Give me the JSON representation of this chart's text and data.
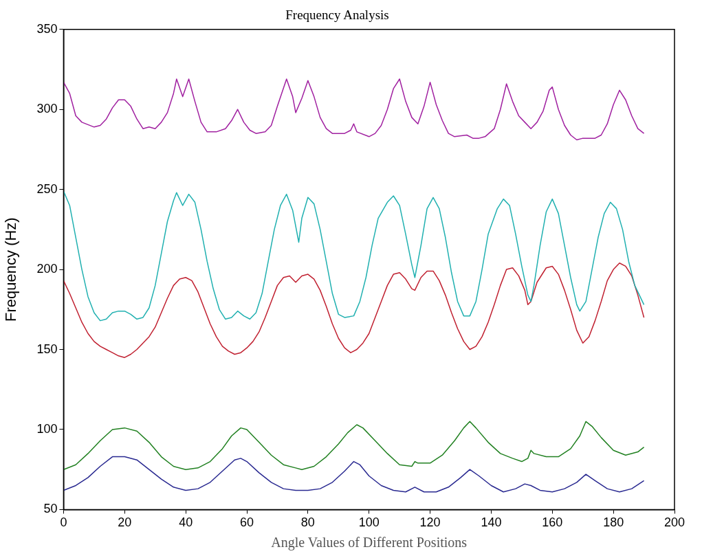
{
  "chart_data": {
    "type": "line",
    "title": "Frequency Analysis",
    "xlabel": "Angle Values of Different Positions",
    "ylabel": "Frequency (Hz)",
    "xlim": [
      0,
      200
    ],
    "xticks": [
      0,
      20,
      40,
      60,
      80,
      100,
      120,
      140,
      160,
      180,
      200
    ],
    "ylim": [
      50,
      350
    ],
    "yticks": [
      50,
      100,
      150,
      200,
      250,
      300,
      350
    ],
    "grid": false,
    "legend": false,
    "marker": "none",
    "line_style": "solid",
    "series": [
      {
        "color": "#a020a0",
        "x": [
          0,
          2,
          4,
          6,
          10,
          12,
          14,
          16,
          18,
          20,
          22,
          24,
          26,
          28,
          30,
          32,
          34,
          36,
          37,
          39,
          41,
          43,
          45,
          47,
          50,
          53,
          55,
          57,
          59,
          61,
          63,
          66,
          68,
          70,
          73,
          75,
          76,
          78,
          80,
          82,
          84,
          86,
          88,
          92,
          94,
          95,
          96,
          100,
          102,
          104,
          106,
          108,
          110,
          112,
          114,
          116,
          118,
          120,
          122,
          124,
          126,
          128,
          132,
          134,
          136,
          138,
          141,
          143,
          145,
          147,
          149,
          151,
          153,
          155,
          157,
          159,
          160,
          162,
          164,
          166,
          168,
          170,
          174,
          176,
          178,
          180,
          182,
          184,
          186,
          188,
          190
        ],
        "values": [
          317,
          310,
          296,
          292,
          289,
          290,
          294,
          301,
          306,
          306,
          302,
          294,
          288,
          289,
          288,
          292,
          298,
          310,
          319,
          308,
          319,
          305,
          292,
          286,
          286,
          288,
          293,
          300,
          292,
          287,
          285,
          286,
          290,
          302,
          319,
          308,
          298,
          307,
          318,
          308,
          295,
          288,
          285,
          285,
          287,
          291,
          286,
          283,
          285,
          290,
          300,
          313,
          319,
          305,
          295,
          291,
          302,
          317,
          303,
          293,
          285,
          283,
          284,
          282,
          282,
          283,
          288,
          300,
          316,
          305,
          296,
          292,
          288,
          292,
          299,
          312,
          314,
          300,
          290,
          284,
          281,
          282,
          282,
          284,
          291,
          303,
          312,
          306,
          296,
          288,
          285
        ]
      },
      {
        "color": "#20b0b0",
        "x": [
          0,
          2,
          4,
          6,
          8,
          10,
          12,
          14,
          16,
          18,
          20,
          22,
          24,
          26,
          28,
          30,
          32,
          34,
          36,
          37,
          39,
          41,
          43,
          45,
          47,
          49,
          51,
          53,
          55,
          57,
          59,
          61,
          63,
          65,
          67,
          69,
          71,
          73,
          75,
          77,
          78,
          80,
          82,
          84,
          86,
          88,
          90,
          92,
          95,
          97,
          99,
          101,
          103,
          106,
          108,
          110,
          112,
          114,
          115,
          117,
          119,
          121,
          123,
          125,
          127,
          129,
          131,
          133,
          135,
          137,
          139,
          142,
          144,
          146,
          148,
          150,
          152,
          153,
          154,
          156,
          158,
          160,
          162,
          164,
          166,
          168,
          169,
          171,
          173,
          175,
          177,
          179,
          181,
          183,
          185,
          187,
          190
        ],
        "values": [
          249,
          240,
          220,
          200,
          183,
          173,
          168,
          169,
          173,
          174,
          174,
          172,
          169,
          170,
          176,
          190,
          210,
          230,
          243,
          248,
          240,
          247,
          242,
          225,
          205,
          188,
          175,
          169,
          170,
          174,
          171,
          169,
          173,
          185,
          205,
          225,
          240,
          247,
          237,
          217,
          232,
          245,
          241,
          225,
          205,
          185,
          172,
          170,
          171,
          180,
          195,
          215,
          232,
          242,
          246,
          240,
          222,
          203,
          195,
          215,
          238,
          245,
          238,
          220,
          198,
          180,
          171,
          171,
          180,
          200,
          222,
          238,
          244,
          240,
          222,
          202,
          184,
          180,
          190,
          215,
          236,
          244,
          235,
          215,
          195,
          178,
          174,
          180,
          200,
          220,
          235,
          242,
          238,
          225,
          205,
          190,
          178
        ]
      },
      {
        "color": "#c02030",
        "x": [
          0,
          2,
          4,
          6,
          8,
          10,
          12,
          14,
          16,
          18,
          20,
          22,
          24,
          26,
          28,
          30,
          32,
          34,
          36,
          38,
          40,
          42,
          44,
          46,
          48,
          50,
          52,
          54,
          56,
          58,
          60,
          62,
          64,
          66,
          68,
          70,
          72,
          74,
          76,
          78,
          80,
          82,
          84,
          86,
          88,
          90,
          92,
          94,
          96,
          98,
          100,
          102,
          104,
          106,
          108,
          110,
          112,
          114,
          115,
          117,
          119,
          121,
          123,
          125,
          127,
          129,
          131,
          133,
          135,
          137,
          139,
          141,
          143,
          145,
          147,
          149,
          151,
          152,
          153,
          155,
          158,
          160,
          162,
          164,
          166,
          168,
          170,
          172,
          174,
          176,
          178,
          180,
          182,
          184,
          186,
          188,
          190
        ],
        "values": [
          193,
          185,
          176,
          167,
          160,
          155,
          152,
          150,
          148,
          146,
          145,
          147,
          150,
          154,
          158,
          164,
          173,
          182,
          190,
          194,
          195,
          193,
          186,
          176,
          166,
          158,
          152,
          149,
          147,
          148,
          151,
          155,
          161,
          170,
          180,
          190,
          195,
          196,
          192,
          196,
          197,
          194,
          187,
          177,
          166,
          157,
          151,
          148,
          150,
          154,
          160,
          170,
          180,
          190,
          197,
          198,
          194,
          188,
          187,
          195,
          199,
          199,
          193,
          184,
          173,
          163,
          155,
          150,
          152,
          158,
          167,
          178,
          190,
          200,
          201,
          196,
          187,
          178,
          180,
          192,
          201,
          202,
          197,
          187,
          175,
          162,
          154,
          158,
          168,
          180,
          193,
          200,
          204,
          202,
          196,
          184,
          170
        ]
      },
      {
        "color": "#208020",
        "x": [
          0,
          4,
          8,
          12,
          16,
          20,
          24,
          28,
          32,
          36,
          40,
          44,
          48,
          52,
          55,
          58,
          60,
          64,
          68,
          72,
          76,
          78,
          82,
          86,
          90,
          93,
          96,
          98,
          102,
          106,
          110,
          114,
          115,
          116,
          120,
          124,
          128,
          131,
          133,
          135,
          139,
          143,
          147,
          150,
          152,
          153,
          154,
          158,
          162,
          166,
          169,
          171,
          173,
          176,
          180,
          184,
          188,
          190
        ],
        "values": [
          75,
          78,
          85,
          93,
          100,
          101,
          99,
          92,
          83,
          77,
          75,
          76,
          80,
          88,
          96,
          101,
          100,
          92,
          84,
          78,
          76,
          75,
          77,
          83,
          91,
          98,
          103,
          101,
          93,
          85,
          78,
          77,
          80,
          79,
          79,
          84,
          93,
          101,
          105,
          101,
          92,
          85,
          82,
          80,
          82,
          87,
          85,
          83,
          83,
          88,
          96,
          105,
          102,
          95,
          87,
          84,
          86,
          89
        ]
      },
      {
        "color": "#282890",
        "x": [
          0,
          4,
          8,
          12,
          16,
          20,
          24,
          28,
          32,
          36,
          40,
          44,
          48,
          52,
          56,
          58,
          60,
          64,
          68,
          72,
          76,
          80,
          84,
          88,
          92,
          95,
          97,
          100,
          104,
          108,
          112,
          115,
          118,
          122,
          126,
          130,
          133,
          136,
          140,
          144,
          148,
          151,
          153,
          156,
          160,
          164,
          168,
          171,
          174,
          178,
          182,
          186,
          190
        ],
        "values": [
          62,
          65,
          70,
          77,
          83,
          83,
          81,
          75,
          69,
          64,
          62,
          63,
          67,
          74,
          81,
          82,
          80,
          73,
          67,
          63,
          62,
          62,
          63,
          67,
          74,
          80,
          78,
          71,
          65,
          62,
          61,
          64,
          61,
          61,
          64,
          70,
          75,
          71,
          65,
          61,
          63,
          66,
          65,
          62,
          61,
          63,
          67,
          72,
          68,
          63,
          61,
          63,
          68
        ]
      }
    ]
  }
}
